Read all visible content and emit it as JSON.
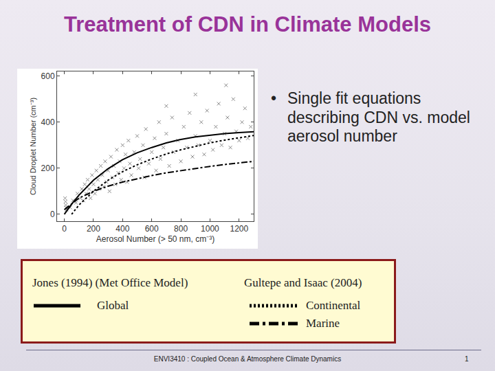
{
  "slide": {
    "title": "Treatment of CDN in Climate Models",
    "bullets": [
      "Single fit equations describing CDN vs. model aerosol number"
    ],
    "footer": "ENVI3410 : Coupled Ocean & Atmosphere Climate Dynamics",
    "page": 1
  },
  "chart_data": {
    "type": "scatter",
    "x_label": "Aerosol Number (> 50 nm, cm⁻³)",
    "y_label": "Cloud Droplet Number (cm⁻³)",
    "xlim": [
      -50,
      1300
    ],
    "xticks": [
      0,
      200,
      400,
      600,
      800,
      1000,
      1200
    ],
    "ylim": [
      -30,
      620
    ],
    "yticks": [
      0,
      200,
      400,
      600
    ],
    "grid": false,
    "series": [
      {
        "type": "scatter",
        "marker": "x",
        "color": "#8c8c8c",
        "x": [
          5,
          8,
          10,
          12,
          15,
          40,
          60,
          80,
          90,
          110,
          120,
          130,
          140,
          150,
          160,
          170,
          180,
          190,
          200,
          210,
          220,
          230,
          240,
          250,
          260,
          270,
          280,
          290,
          300,
          310,
          320,
          330,
          340,
          350,
          360,
          370,
          380,
          390,
          400,
          410,
          420,
          430,
          440,
          450,
          460,
          480,
          500,
          510,
          520,
          540,
          550,
          560,
          580,
          600,
          620,
          630,
          650,
          660,
          680,
          700,
          720,
          740,
          750,
          780,
          800,
          820,
          840,
          860,
          880,
          900,
          920,
          940,
          960,
          980,
          1000,
          1020,
          1040,
          1060,
          1080,
          1100,
          1120,
          1140,
          1160,
          1180,
          1200,
          1220,
          1240,
          1260,
          1280,
          1110,
          900,
          700
        ],
        "values": [
          70,
          55,
          40,
          30,
          20,
          30,
          60,
          50,
          90,
          70,
          110,
          60,
          130,
          90,
          150,
          110,
          70,
          170,
          130,
          90,
          190,
          150,
          110,
          210,
          170,
          120,
          230,
          140,
          190,
          100,
          250,
          160,
          210,
          130,
          280,
          180,
          230,
          150,
          300,
          200,
          260,
          140,
          320,
          220,
          170,
          270,
          340,
          200,
          240,
          300,
          160,
          370,
          220,
          270,
          330,
          190,
          400,
          240,
          290,
          350,
          210,
          420,
          270,
          320,
          230,
          380,
          290,
          440,
          250,
          340,
          300,
          400,
          260,
          450,
          320,
          280,
          380,
          480,
          300,
          350,
          420,
          290,
          500,
          360,
          320,
          400,
          460,
          330,
          380,
          560,
          520,
          470
        ]
      },
      {
        "type": "line",
        "name": "Global",
        "group": "Jones (1994) (Met Office Model)",
        "line_style": "solid",
        "color": "#000000",
        "x": [
          0,
          50,
          100,
          200,
          300,
          400,
          500,
          600,
          700,
          800,
          900,
          1000,
          1100,
          1200,
          1300
        ],
        "values": [
          0,
          44,
          83,
          148,
          198,
          237,
          267,
          290,
          310,
          325,
          336,
          344,
          350,
          355,
          358
        ]
      },
      {
        "type": "line",
        "name": "Continental",
        "group": "Gultepe and Isaac (2004)",
        "line_style": "dot",
        "color": "#000000",
        "x": [
          50,
          100,
          200,
          300,
          400,
          500,
          600,
          700,
          800,
          900,
          1000,
          1100,
          1200,
          1300
        ],
        "values": [
          0,
          40,
          100,
          148,
          185,
          215,
          240,
          262,
          280,
          296,
          310,
          322,
          333,
          342
        ]
      },
      {
        "type": "line",
        "name": "Marine",
        "group": "Gultepe and Isaac (2004)",
        "line_style": "dashdot",
        "color": "#000000",
        "x": [
          0,
          100,
          200,
          300,
          400,
          500,
          600,
          700,
          800,
          900,
          1000,
          1100,
          1200,
          1300
        ],
        "values": [
          20,
          70,
          100,
          122,
          140,
          155,
          168,
          180,
          190,
          200,
          208,
          216,
          223,
          230
        ]
      }
    ]
  }
}
